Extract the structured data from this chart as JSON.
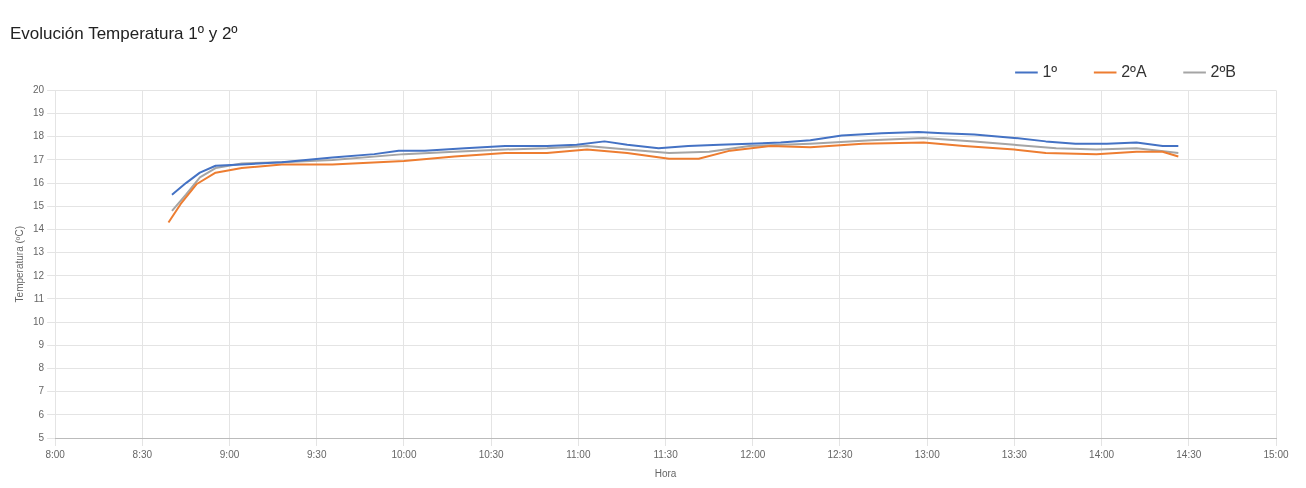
{
  "chart_data": {
    "type": "line",
    "title": "Evolución Temperatura 1º y 2º",
    "xlabel": "Hora",
    "ylabel": "Temperatura (ºC)",
    "xlim": [
      8,
      15
    ],
    "xticks": [
      {
        "value": 8,
        "label": "8:00"
      },
      {
        "value": 8.5,
        "label": "8:30"
      },
      {
        "value": 9,
        "label": "9:00"
      },
      {
        "value": 9.5,
        "label": "9:30"
      },
      {
        "value": 10,
        "label": "10:00"
      },
      {
        "value": 10.5,
        "label": "10:30"
      },
      {
        "value": 11,
        "label": "11:00"
      },
      {
        "value": 11.5,
        "label": "11:30"
      },
      {
        "value": 12,
        "label": "12:00"
      },
      {
        "value": 12.5,
        "label": "12:30"
      },
      {
        "value": 13,
        "label": "13:00"
      },
      {
        "value": 13.5,
        "label": "13:30"
      },
      {
        "value": 14,
        "label": "14:00"
      },
      {
        "value": 14.5,
        "label": "14:30"
      },
      {
        "value": 15,
        "label": "15:00"
      }
    ],
    "ylim": [
      5,
      20
    ],
    "yticks": [
      5,
      6,
      7,
      8,
      9,
      10,
      11,
      12,
      13,
      14,
      15,
      16,
      17,
      18,
      19,
      20
    ],
    "grid": true,
    "legend": "top right",
    "marker": "none",
    "line_style": "solid",
    "series": [
      {
        "name": "1º",
        "color": "#4472c4",
        "x": [
          8.67,
          8.75,
          8.83,
          8.92,
          9.07,
          9.3,
          9.59,
          9.83,
          9.97,
          10.12,
          10.35,
          10.58,
          10.82,
          10.99,
          11.15,
          11.28,
          11.46,
          11.63,
          11.81,
          11.98,
          12.16,
          12.33,
          12.51,
          12.74,
          12.95,
          13.09,
          13.27,
          13.5,
          13.68,
          13.85,
          14.03,
          14.2,
          14.35,
          14.44
        ],
        "values": [
          15.5,
          16.0,
          16.45,
          16.75,
          16.8,
          16.9,
          17.1,
          17.25,
          17.4,
          17.4,
          17.5,
          17.6,
          17.6,
          17.65,
          17.8,
          17.65,
          17.5,
          17.6,
          17.65,
          17.7,
          17.75,
          17.85,
          18.05,
          18.15,
          18.2,
          18.15,
          18.1,
          17.95,
          17.8,
          17.7,
          17.7,
          17.75,
          17.6,
          17.6
        ]
      },
      {
        "name": "2ºA",
        "color": "#ed7d31",
        "x": [
          8.65,
          8.72,
          8.81,
          8.92,
          9.07,
          9.3,
          9.59,
          10.0,
          10.29,
          10.58,
          10.82,
          11.05,
          11.28,
          11.52,
          11.69,
          11.87,
          12.1,
          12.33,
          12.63,
          12.98,
          13.21,
          13.5,
          13.68,
          13.97,
          14.2,
          14.35,
          14.44
        ],
        "values": [
          14.3,
          15.1,
          15.95,
          16.45,
          16.65,
          16.8,
          16.8,
          16.95,
          17.15,
          17.3,
          17.3,
          17.45,
          17.3,
          17.05,
          17.05,
          17.4,
          17.6,
          17.55,
          17.7,
          17.75,
          17.6,
          17.45,
          17.3,
          17.25,
          17.35,
          17.35,
          17.15
        ]
      },
      {
        "name": "2ºB",
        "color": "#a5a5a5",
        "x": [
          8.67,
          8.75,
          8.83,
          8.92,
          9.07,
          9.3,
          9.59,
          10.0,
          10.29,
          10.58,
          10.82,
          11.05,
          11.28,
          11.52,
          11.75,
          11.98,
          12.33,
          12.68,
          12.98,
          13.27,
          13.5,
          13.74,
          13.97,
          14.2,
          14.38,
          14.44
        ],
        "values": [
          14.8,
          15.5,
          16.25,
          16.65,
          16.85,
          16.9,
          17.0,
          17.25,
          17.35,
          17.45,
          17.5,
          17.6,
          17.45,
          17.3,
          17.35,
          17.6,
          17.7,
          17.85,
          17.95,
          17.8,
          17.65,
          17.5,
          17.45,
          17.5,
          17.35,
          17.3
        ]
      }
    ]
  }
}
